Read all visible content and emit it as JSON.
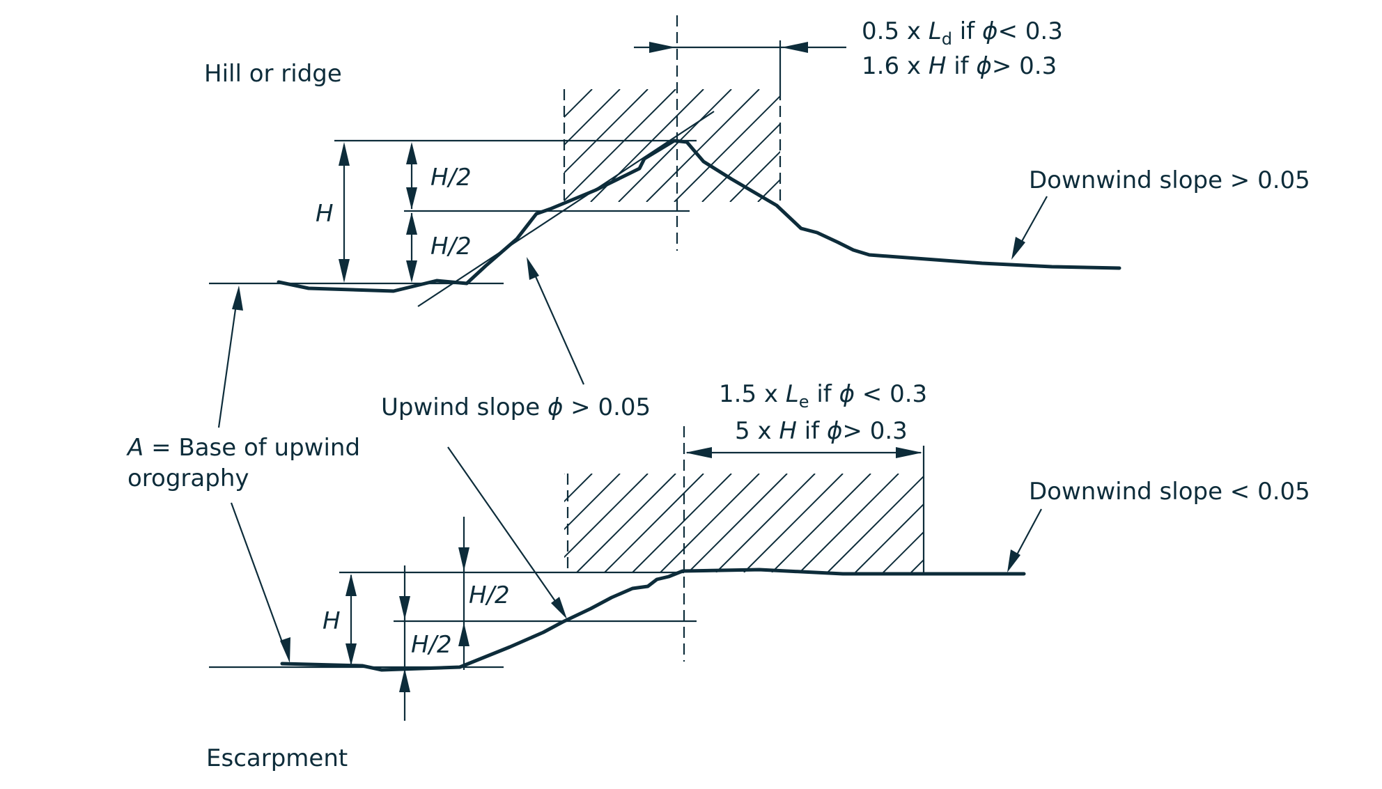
{
  "hill": {
    "title": "Hill or ridge",
    "zone_line1": {
      "pre": "0.5 x ",
      "var": "L",
      "sub": "d",
      "post": "   if  ",
      "phi": "ϕ",
      "cond": "< 0.3"
    },
    "zone_line2": {
      "pre": "1.6 x ",
      "var": "H",
      "post": "   if  ",
      "phi": "ϕ",
      "cond": "> 0.3"
    },
    "height_label": "H",
    "half_upper": "H/2",
    "half_lower": "H/2",
    "downwind_label": "Downwind slope > 0.05"
  },
  "shared": {
    "upwind_pre": "Upwind slope  ",
    "upwind_phi": "ϕ",
    "upwind_post": " > 0.05",
    "base_var": "A",
    "base_line1": " = Base of upwind",
    "base_line2": "orography"
  },
  "escarpment": {
    "title": "Escarpment",
    "zone_line1": {
      "pre": "1.5 x ",
      "var": "L",
      "sub": "e",
      "post": "   if   ",
      "phi": "ϕ",
      "cond": " < 0.3"
    },
    "zone_line2": {
      "pre": "5 x ",
      "var": "H",
      "post": "  if   ",
      "phi": "ϕ",
      "cond": "> 0.3"
    },
    "height_label": "H",
    "half_upper": "H/2",
    "half_lower": "H/2",
    "downwind_label": "Downwind slope < 0.05"
  }
}
